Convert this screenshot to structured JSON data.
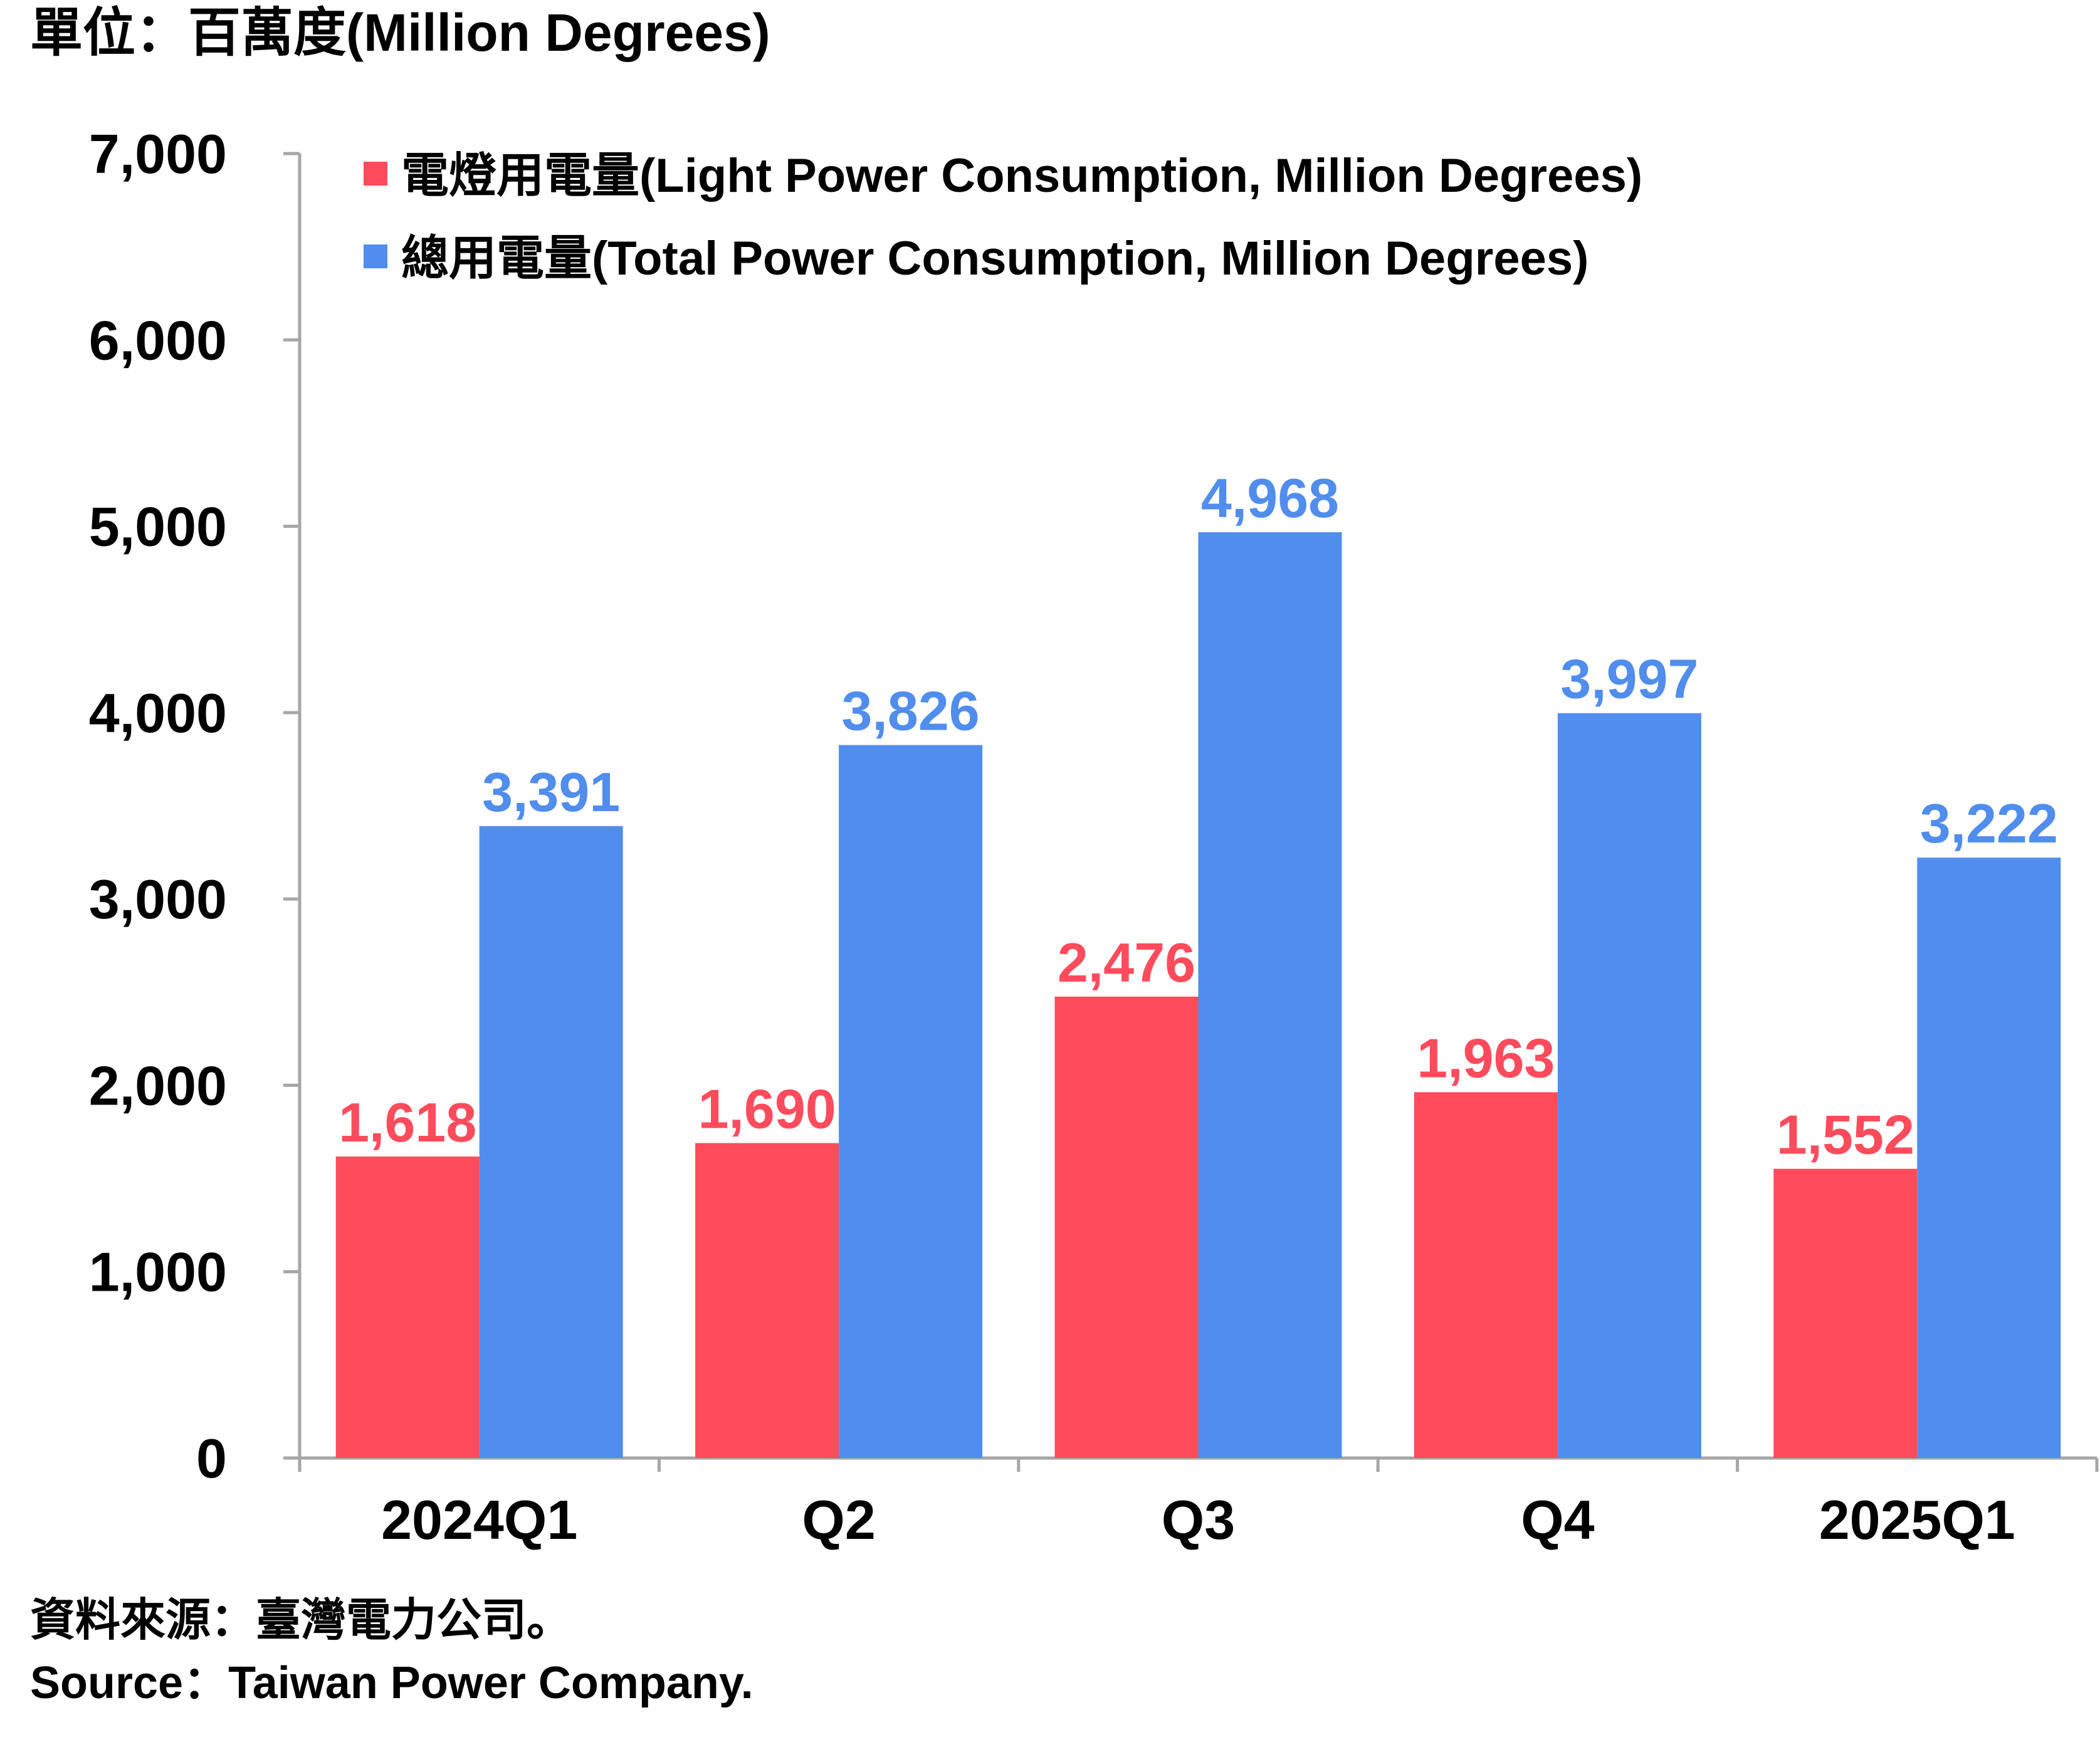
{
  "header": {
    "unit_label": "單位：百萬度(Million Degrees)"
  },
  "footer": {
    "source_zh": "資料來源：臺灣電力公司。",
    "source_en": "Source：Taiwan Power Company."
  },
  "colors": {
    "light_series": "#FF4B5C",
    "total_series": "#508DEC",
    "axis": "#A6A6A6",
    "text": "#000000"
  },
  "chart_data": {
    "type": "bar",
    "categories": [
      "2024Q1",
      "Q2",
      "Q3",
      "Q4",
      "2025Q1"
    ],
    "series": [
      {
        "name": "電燈用電量(Light Power Consumption, Million Degrees)",
        "values": [
          1618,
          1690,
          2476,
          1963,
          1552
        ],
        "labels": [
          "1,618",
          "1,690",
          "2,476",
          "1,963",
          "1,552"
        ],
        "color": "#FF4B5C"
      },
      {
        "name": "總用電量(Total Power Consumption, Million Degrees)",
        "values": [
          3391,
          3826,
          4968,
          3997,
          3222
        ],
        "labels": [
          "3,391",
          "3,826",
          "4,968",
          "3,997",
          "3,222"
        ],
        "color": "#508DEC"
      }
    ],
    "ylim": [
      0,
      7000
    ],
    "yticks": [
      0,
      1000,
      2000,
      3000,
      4000,
      5000,
      6000,
      7000
    ],
    "ytick_labels": [
      "0",
      "1,000",
      "2,000",
      "3,000",
      "4,000",
      "5,000",
      "6,000",
      "7,000"
    ],
    "legend_position": "top-left",
    "grid": false
  }
}
